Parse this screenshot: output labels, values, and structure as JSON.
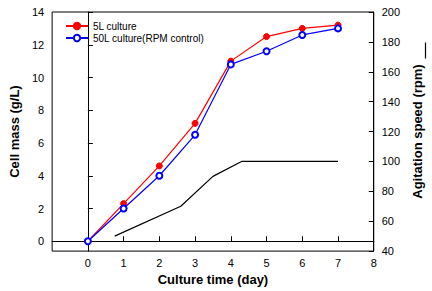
{
  "chart_data": {
    "type": "line",
    "x_label": "Culture time (day)",
    "y_label": "Cell mass (g/L)",
    "y2_label": "Agitation speed (rpm)",
    "xlim": [
      -1,
      8
    ],
    "xticks": [
      0,
      1,
      2,
      3,
      4,
      5,
      6,
      7,
      8
    ],
    "ylim": [
      -0.6,
      14
    ],
    "yticks": [
      0,
      2,
      4,
      6,
      8,
      10,
      12,
      14
    ],
    "y2lim": [
      40,
      200
    ],
    "y2ticks": [
      40,
      60,
      80,
      100,
      120,
      140,
      160,
      180,
      200
    ],
    "legend": "upper left",
    "grid": false,
    "series": [
      {
        "name": "5L culture",
        "color": "#ff0000",
        "marker": "circle",
        "x": [
          0,
          1,
          2,
          3,
          4,
          5,
          6,
          7
        ],
        "values": [
          0,
          2.3,
          4.6,
          7.2,
          11,
          12.5,
          13,
          13.2
        ]
      },
      {
        "name": "50L culture(RPM control)",
        "color": "#0000ff",
        "marker": "open_circle",
        "x": [
          0,
          1,
          2,
          3,
          4,
          5,
          6,
          7
        ],
        "values": [
          0,
          2,
          4,
          6.5,
          10.8,
          11.6,
          12.6,
          13
        ]
      },
      {
        "color": "#000000",
        "marker": "none",
        "axis": "y2",
        "x": [
          0.75,
          2.6,
          3.5,
          4.3,
          7
        ],
        "values": [
          50,
          70,
          90,
          100,
          100
        ]
      }
    ]
  }
}
